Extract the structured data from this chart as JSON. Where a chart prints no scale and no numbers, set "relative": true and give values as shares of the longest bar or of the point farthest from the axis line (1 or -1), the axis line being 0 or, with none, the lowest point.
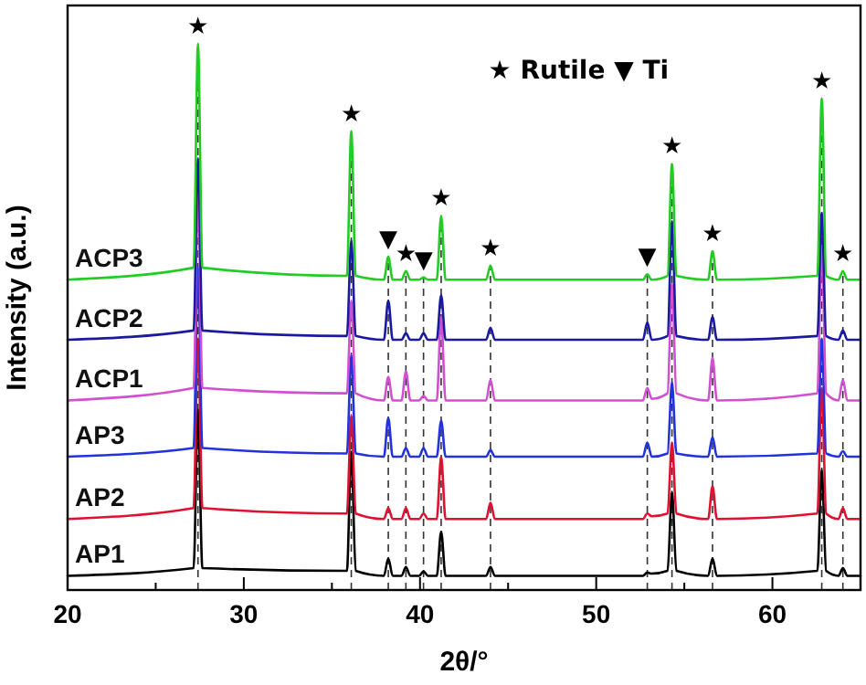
{
  "chart_data": {
    "type": "line",
    "relative": true,
    "xlabel": "2θ/°",
    "ylabel": "Intensity (a.u.)",
    "xlim": [
      20,
      65
    ],
    "xticks": [
      20,
      {
        "value": 25,
        "label": null
      },
      30,
      {
        "value": 35,
        "label": null
      },
      40,
      {
        "value": 45,
        "label": null
      },
      50,
      {
        "value": 55,
        "label": null
      },
      60
    ],
    "line_style": "solid",
    "marker": "none",
    "grid": false,
    "legend": false,
    "series": [
      {
        "name": "AP1",
        "color": "#000000",
        "x": [
          20,
          27.15,
          27.4,
          27.65,
          35.85,
          36.1,
          36.35,
          37.95,
          38.2,
          38.45,
          38.95,
          39.2,
          39.45,
          39.95,
          40.2,
          40.45,
          40.95,
          41.2,
          41.45,
          43.75,
          44.0,
          44.25,
          52.65,
          52.9,
          53.15,
          54.05,
          54.3,
          54.55,
          56.35,
          56.6,
          56.85,
          62.55,
          62.8,
          63.05,
          63.75,
          64.0,
          64.25,
          65
        ],
        "values": [
          0.026,
          0.04,
          0.33,
          0.04,
          0.035,
          0.253,
          0.035,
          0.026,
          0.058,
          0.026,
          0.026,
          0.042,
          0.026,
          0.026,
          0.034,
          0.026,
          0.026,
          0.107,
          0.026,
          0.026,
          0.042,
          0.026,
          0.026,
          0.032,
          0.03,
          0.035,
          0.18,
          0.035,
          0.026,
          0.058,
          0.026,
          0.035,
          0.22,
          0.035,
          0.026,
          0.04,
          0.026,
          0.026
        ]
      },
      {
        "name": "AP2",
        "color": "#e01030",
        "x": [
          20,
          27.15,
          27.4,
          27.65,
          35.85,
          36.1,
          36.35,
          37.95,
          38.2,
          38.45,
          38.95,
          39.2,
          39.45,
          39.95,
          40.2,
          40.45,
          40.95,
          41.2,
          41.45,
          43.75,
          44.0,
          44.25,
          52.65,
          52.9,
          53.15,
          54.05,
          54.3,
          54.55,
          56.35,
          56.6,
          56.85,
          62.55,
          62.8,
          63.05,
          63.75,
          64.0,
          64.25,
          65
        ],
        "values": [
          0.13,
          0.15,
          0.46,
          0.15,
          0.14,
          0.32,
          0.14,
          0.13,
          0.15,
          0.13,
          0.13,
          0.15,
          0.13,
          0.13,
          0.14,
          0.13,
          0.13,
          0.244,
          0.13,
          0.13,
          0.16,
          0.13,
          0.13,
          0.14,
          0.135,
          0.14,
          0.27,
          0.14,
          0.13,
          0.19,
          0.13,
          0.14,
          0.37,
          0.14,
          0.13,
          0.15,
          0.13,
          0.13
        ]
      },
      {
        "name": "AP3",
        "color": "#2233dd",
        "x": [
          20,
          27.15,
          27.4,
          27.65,
          35.85,
          36.1,
          36.35,
          37.95,
          38.2,
          38.45,
          38.95,
          39.2,
          39.45,
          39.95,
          40.2,
          40.45,
          40.95,
          41.2,
          41.45,
          43.75,
          44.0,
          44.25,
          52.65,
          52.9,
          53.15,
          54.05,
          54.3,
          54.55,
          56.35,
          56.6,
          56.85,
          62.55,
          62.8,
          63.05,
          63.75,
          64.0,
          64.25,
          65
        ],
        "values": [
          0.244,
          0.26,
          0.59,
          0.26,
          0.25,
          0.43,
          0.25,
          0.244,
          0.315,
          0.244,
          0.244,
          0.26,
          0.244,
          0.244,
          0.26,
          0.244,
          0.244,
          0.31,
          0.244,
          0.244,
          0.256,
          0.244,
          0.244,
          0.27,
          0.244,
          0.25,
          0.38,
          0.25,
          0.244,
          0.28,
          0.244,
          0.25,
          0.46,
          0.25,
          0.244,
          0.254,
          0.244,
          0.244
        ]
      },
      {
        "name": "ACP1",
        "color": "#d050d0",
        "x": [
          20,
          27.15,
          27.4,
          27.65,
          35.85,
          36.1,
          36.35,
          37.95,
          38.2,
          38.45,
          38.95,
          39.2,
          39.45,
          39.95,
          40.2,
          40.45,
          40.95,
          41.2,
          41.45,
          43.75,
          44.0,
          44.25,
          52.65,
          52.9,
          53.15,
          54.05,
          54.3,
          54.55,
          56.35,
          56.6,
          56.85,
          62.55,
          62.8,
          63.05,
          63.75,
          64.0,
          64.25,
          65
        ],
        "values": [
          0.347,
          0.37,
          0.725,
          0.37,
          0.36,
          0.53,
          0.36,
          0.347,
          0.39,
          0.347,
          0.347,
          0.4,
          0.347,
          0.347,
          0.355,
          0.347,
          0.347,
          0.5,
          0.347,
          0.347,
          0.385,
          0.347,
          0.347,
          0.37,
          0.35,
          0.36,
          0.56,
          0.36,
          0.347,
          0.425,
          0.347,
          0.36,
          0.63,
          0.36,
          0.347,
          0.385,
          0.347,
          0.347
        ]
      },
      {
        "name": "ACP2",
        "color": "#1a1aa0",
        "x": [
          20,
          27.15,
          27.4,
          27.65,
          35.85,
          36.1,
          36.35,
          37.95,
          38.2,
          38.45,
          38.95,
          39.2,
          39.45,
          39.95,
          40.2,
          40.45,
          40.95,
          41.2,
          41.45,
          43.75,
          44.0,
          44.25,
          52.65,
          52.9,
          53.15,
          54.05,
          54.3,
          54.55,
          56.35,
          56.6,
          56.85,
          62.55,
          62.8,
          63.05,
          63.75,
          64.0,
          64.25,
          65
        ],
        "values": [
          0.458,
          0.475,
          0.79,
          0.475,
          0.465,
          0.64,
          0.465,
          0.458,
          0.53,
          0.458,
          0.458,
          0.47,
          0.458,
          0.458,
          0.47,
          0.458,
          0.458,
          0.54,
          0.458,
          0.458,
          0.48,
          0.458,
          0.458,
          0.49,
          0.458,
          0.465,
          0.675,
          0.465,
          0.458,
          0.5,
          0.458,
          0.465,
          0.69,
          0.465,
          0.458,
          0.475,
          0.458,
          0.458
        ]
      },
      {
        "name": "ACP3",
        "color": "#22cc22",
        "x": [
          20,
          27.15,
          27.4,
          27.65,
          35.85,
          36.1,
          36.35,
          37.95,
          38.2,
          38.45,
          38.95,
          39.2,
          39.45,
          39.95,
          40.2,
          40.45,
          40.95,
          41.2,
          41.45,
          43.75,
          44.0,
          44.25,
          52.65,
          52.9,
          53.15,
          54.05,
          54.3,
          54.55,
          56.35,
          56.6,
          56.85,
          62.55,
          62.8,
          63.05,
          63.75,
          64.0,
          64.25,
          65
        ],
        "values": [
          0.568,
          0.59,
          1,
          0.59,
          0.575,
          0.84,
          0.575,
          0.568,
          0.61,
          0.568,
          0.568,
          0.584,
          0.568,
          0.568,
          0.572,
          0.568,
          0.568,
          0.685,
          0.568,
          0.568,
          0.594,
          0.568,
          0.568,
          0.578,
          0.568,
          0.575,
          0.78,
          0.575,
          0.568,
          0.62,
          0.568,
          0.575,
          0.9,
          0.575,
          0.568,
          0.584,
          0.568,
          0.568
        ]
      }
    ],
    "ref_lines": [
      {
        "axis": "x",
        "value": 27.4,
        "label": "★",
        "color": "#333333",
        "line_style": "dashed"
      },
      {
        "axis": "x",
        "value": 36.1,
        "label": "★",
        "color": "#333333",
        "line_style": "dashed"
      },
      {
        "axis": "x",
        "value": 38.2,
        "label": "▼",
        "color": "#333333",
        "line_style": "dashed"
      },
      {
        "axis": "x",
        "value": 39.2,
        "label": "★",
        "color": "#333333",
        "line_style": "dashed"
      },
      {
        "axis": "x",
        "value": 40.2,
        "label": "▼",
        "color": "#333333",
        "line_style": "dashed"
      },
      {
        "axis": "x",
        "value": 41.2,
        "label": "★",
        "color": "#333333",
        "line_style": "dashed"
      },
      {
        "axis": "x",
        "value": 44.0,
        "label": "★",
        "color": "#333333",
        "line_style": "dashed"
      },
      {
        "axis": "x",
        "value": 52.9,
        "label": "▼",
        "color": "#333333",
        "line_style": "dashed"
      },
      {
        "axis": "x",
        "value": 54.3,
        "label": "★",
        "color": "#333333",
        "line_style": "dashed"
      },
      {
        "axis": "x",
        "value": 56.6,
        "label": "★",
        "color": "#333333",
        "line_style": "dashed"
      },
      {
        "axis": "x",
        "value": 62.8,
        "label": "★",
        "color": "#333333",
        "line_style": "dashed"
      },
      {
        "axis": "x",
        "value": 64.0,
        "label": "★",
        "color": "#333333",
        "line_style": "dashed"
      }
    ],
    "annotations": [
      "★ Rutile ▼ Ti"
    ]
  }
}
